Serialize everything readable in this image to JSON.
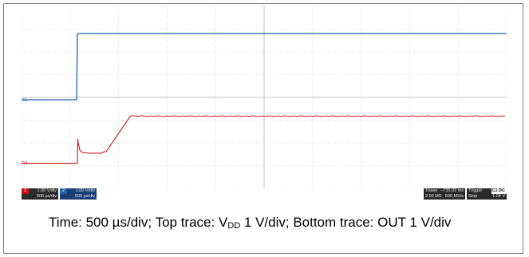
{
  "scope": {
    "channels": [
      {
        "id": "ch1",
        "marker": "C1",
        "color": "#1e63b0",
        "scale": "1.00 V/div",
        "timebase": "500 µs/div"
      },
      {
        "id": "ch2",
        "marker": "R4",
        "color": "#c81414",
        "scale": "1.00 V/div",
        "timebase": "500 µs/div"
      }
    ],
    "status": {
      "tbase_label": "Tbase",
      "tbase_value": "−735.02 ms",
      "timebase": "500 µs/div",
      "samples": "2.50 MS",
      "rate": "500 MS/s",
      "trigger_label": "Trigger",
      "trigger_mode": "Stop",
      "trigger_type": "Edge",
      "trigger_level": "1.04 V",
      "trigger_slope": "Positive",
      "trigger_badge": "C1 DC"
    }
  },
  "caption": {
    "part1": "Time: 500 µs/div; Top trace: V",
    "sub1": "DD",
    "part2": " 1 V/div; Bottom trace: OUT 1 V/div"
  }
}
